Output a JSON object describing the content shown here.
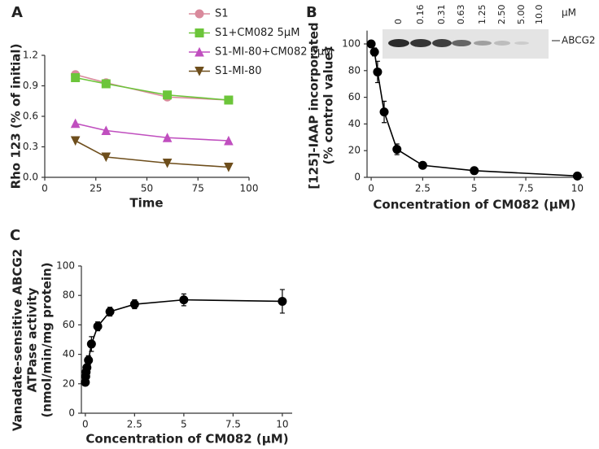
{
  "chart_data": [
    {
      "type": "line",
      "panel": "A",
      "xlabel": "Time",
      "ylabel": "Rho 123 (% of initial)",
      "xlim": [
        0,
        100
      ],
      "ylim": [
        0,
        1.2
      ],
      "xticks": [
        0,
        25,
        50,
        75,
        100
      ],
      "yticks": [
        {
          "value": 0,
          "label": "0.0"
        },
        0.3,
        0.6,
        0.9,
        1.2
      ],
      "x": [
        15,
        30,
        60,
        90
      ],
      "series": [
        {
          "name": "S1",
          "color": "#d98a9c",
          "marker": "circle",
          "values": [
            1.01,
            0.93,
            0.79,
            0.76
          ]
        },
        {
          "name": "S1+CM082 5μM",
          "color": "#6cc53a",
          "marker": "square",
          "values": [
            0.98,
            0.92,
            0.81,
            0.76
          ]
        },
        {
          "name": "S1-MI-80+CM082 5μM",
          "color": "#c04fbf",
          "marker": "triangle-up",
          "values": [
            0.53,
            0.46,
            0.39,
            0.36
          ]
        },
        {
          "name": "S1-MI-80",
          "color": "#6e4e1c",
          "marker": "triangle-down",
          "values": [
            0.36,
            0.2,
            0.14,
            0.1
          ]
        }
      ]
    },
    {
      "type": "line",
      "panel": "B",
      "xlabel": "Concentration of CM082 (μM)",
      "ylabel": [
        "[125]-IAAP incorporated",
        "(% control value)"
      ],
      "xlim": [
        -0.2,
        10.3
      ],
      "ylim": [
        0,
        110
      ],
      "xticks": [
        0,
        2.5,
        5,
        7.5,
        10
      ],
      "yticks": [
        0,
        20,
        40,
        60,
        80,
        100
      ],
      "x": [
        0,
        0.16,
        0.31,
        0.63,
        1.25,
        2.5,
        5,
        10
      ],
      "series": [
        {
          "color": "#000000",
          "marker": "circle",
          "values": [
            100,
            94,
            79,
            49,
            21,
            9,
            5,
            1
          ],
          "errors": [
            0,
            3,
            8,
            8,
            4,
            2,
            1,
            0.5
          ]
        }
      ],
      "inset": {
        "lanes": [
          "0",
          "0.16",
          "0.31",
          "0.63",
          "1.25",
          "2.50",
          "5.00",
          "10.0"
        ],
        "unit": "μM",
        "label": "ABCG2"
      }
    },
    {
      "type": "line",
      "panel": "C",
      "xlabel": "Concentration of CM082 (μM)",
      "ylabel": [
        "Vanadate-sensitive ABCG2",
        "ATPase activity",
        "(nmol/min/mg protein)"
      ],
      "xlim": [
        -0.2,
        10.5
      ],
      "ylim": [
        0,
        100
      ],
      "xticks": [
        0,
        2.5,
        5,
        7.5,
        10
      ],
      "yticks": [
        0,
        20,
        40,
        60,
        80,
        100
      ],
      "x": [
        0,
        0.02,
        0.04,
        0.08,
        0.16,
        0.31,
        0.63,
        1.25,
        2.5,
        5,
        10
      ],
      "series": [
        {
          "color": "#000000",
          "marker": "circle",
          "values": [
            21,
            25,
            28,
            31,
            36,
            47,
            59,
            69,
            74,
            77,
            76
          ],
          "errors": [
            1,
            1,
            1,
            2,
            3,
            5,
            3,
            3,
            3,
            4,
            8
          ]
        }
      ]
    }
  ]
}
